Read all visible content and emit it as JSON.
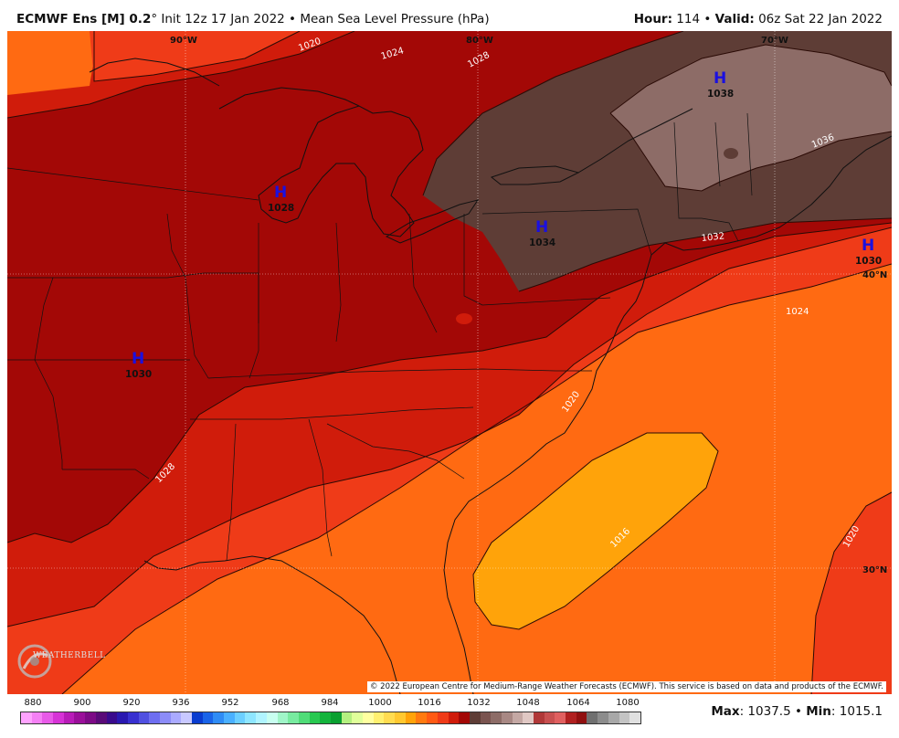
{
  "header": {
    "model": "ECMWF Ens [M] 0.2",
    "degree": "°",
    "init": "Init 12z 17 Jan 2022",
    "sep": "•",
    "product": "Mean Sea Level Pressure (hPa)",
    "hour_label": "Hour:",
    "hour_value": "114",
    "valid_label": "Valid:",
    "valid_value": "06z Sat 22 Jan 2022"
  },
  "map": {
    "graticule": {
      "lon_90": "90°W",
      "lon_80": "80°W",
      "lon_70": "70°W",
      "lat_40": "40°N",
      "lat_30": "30°N"
    },
    "highs": [
      {
        "letter": "H",
        "value": "1028"
      },
      {
        "letter": "H",
        "value": "1038"
      },
      {
        "letter": "H",
        "value": "1034"
      },
      {
        "letter": "H",
        "value": "1030"
      },
      {
        "letter": "H",
        "value": "1030"
      }
    ],
    "isobar_labels": [
      "1020",
      "1024",
      "1028",
      "1036",
      "1032",
      "1024",
      "1020",
      "1028",
      "1016",
      "1020"
    ],
    "colors": {
      "p1016": "#ffa30a",
      "p1020": "#ff6a12",
      "p1024": "#ef3b18",
      "p1028": "#d01c0b",
      "p1030": "#a30806",
      "p1034": "#5e3d36",
      "p1038": "#8d6c67"
    },
    "logo": "WEATHERBELL",
    "credit": "© 2022 European Centre for Medium-Range Weather Forecasts (ECMWF). This service is based on data and products of the ECMWF."
  },
  "colorbar": {
    "ticks": [
      "880",
      "900",
      "920",
      "936",
      "952",
      "968",
      "984",
      "1000",
      "1016",
      "1032",
      "1048",
      "1064",
      "1080"
    ],
    "colors": [
      "#ffa3ff",
      "#f580f5",
      "#e85ae8",
      "#d633d6",
      "#b81cb8",
      "#9a0f9a",
      "#7d0a86",
      "#5a0a78",
      "#3a0a8c",
      "#2a18b0",
      "#3830d0",
      "#5050e0",
      "#6e6ef0",
      "#8c8cf8",
      "#aaaaff",
      "#c8c8ff",
      "#0a3ccf",
      "#1a64e8",
      "#2f8cf5",
      "#4ab0ff",
      "#6ccfff",
      "#8ee6ff",
      "#b0f4ff",
      "#c8fff0",
      "#a0f5c8",
      "#78eba0",
      "#50dc78",
      "#28c850",
      "#14b43c",
      "#0aa030",
      "#b4f080",
      "#e0ff9a",
      "#ffffa0",
      "#fff070",
      "#ffdc50",
      "#ffc830",
      "#ffa30a",
      "#ff7a10",
      "#ff5a14",
      "#ef3b18",
      "#d01c0b",
      "#a30806",
      "#5e3d36",
      "#7a5450",
      "#8d6c67",
      "#a88884",
      "#c4a8a4",
      "#e0c8c4",
      "#b03838",
      "#c85050",
      "#e06060",
      "#b02020",
      "#901010",
      "#707070",
      "#8c8c8c",
      "#a8a8a8",
      "#c4c4c4",
      "#e0e0e0"
    ]
  },
  "stats": {
    "max_label": "Max",
    "max_value": ": 1037.5",
    "sep": "•",
    "min_label": "Min",
    "min_value": ": 1015.1"
  }
}
